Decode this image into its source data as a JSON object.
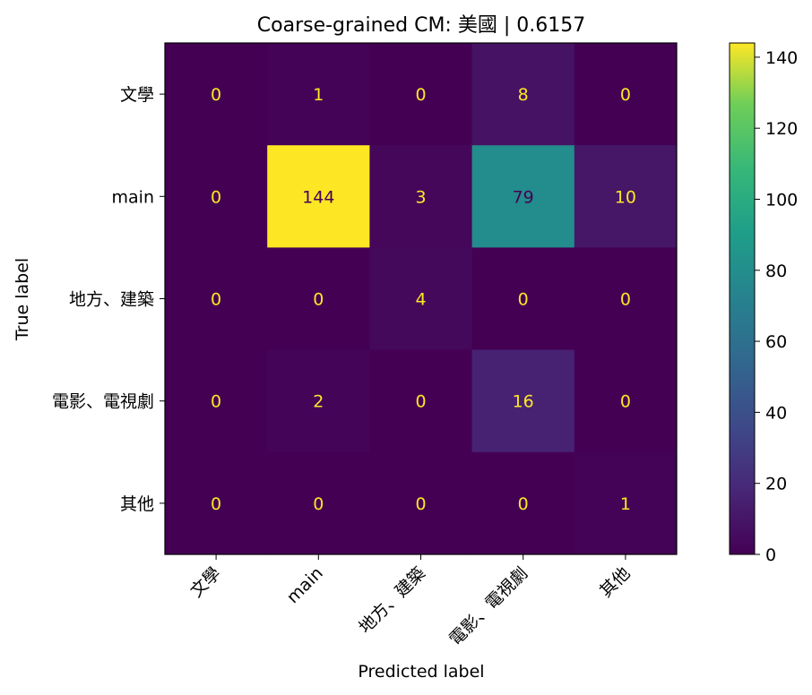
{
  "chart_data": {
    "type": "heatmap",
    "title": "Coarse-grained CM: 美國 | 0.6157",
    "xlabel": "Predicted label",
    "ylabel": "True label",
    "x_categories": [
      "文學",
      "main",
      "地方、建築",
      "電影、電視劇",
      "其他"
    ],
    "y_categories": [
      "文學",
      "main",
      "地方、建築",
      "電影、電視劇",
      "其他"
    ],
    "matrix": [
      [
        0,
        1,
        0,
        8,
        0
      ],
      [
        0,
        144,
        3,
        79,
        10
      ],
      [
        0,
        0,
        4,
        0,
        0
      ],
      [
        0,
        2,
        0,
        16,
        0
      ],
      [
        0,
        0,
        0,
        0,
        1
      ]
    ],
    "colorbar": {
      "range": [
        0,
        144
      ],
      "ticks": [
        0,
        20,
        40,
        60,
        80,
        100,
        120,
        140
      ]
    },
    "colormap": "viridis",
    "colors": {
      "low_text": "#fde725",
      "high_text": "#440154",
      "axis": "#000000"
    }
  }
}
